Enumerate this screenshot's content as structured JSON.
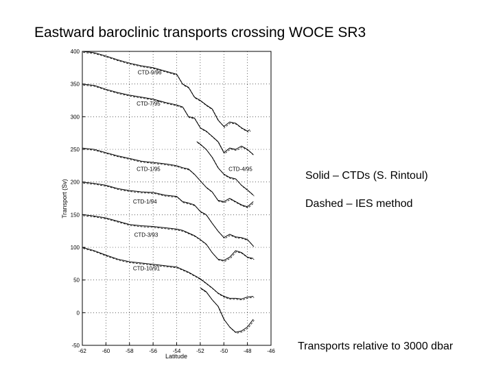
{
  "slide": {
    "title": "Eastward baroclinic transports crossing WOCE SR3",
    "notes": {
      "solid": "Solid – CTDs (S. Rintoul)",
      "dashed": "Dashed – IES method",
      "relative": "Transports relative to 3000 dbar"
    }
  },
  "chart_data": {
    "type": "line",
    "title": "",
    "xlabel": "Latitude",
    "ylabel": "Transport (Sv)",
    "xlim": [
      -62,
      -46
    ],
    "ylim": [
      -50,
      400
    ],
    "xticks": [
      "-62",
      "-60",
      "-58",
      "-56",
      "-54",
      "-52",
      "-50",
      "-48",
      "-46"
    ],
    "yticks": [
      "400",
      "350",
      "300",
      "250",
      "200",
      "150",
      "100",
      "50",
      "0",
      "-50"
    ],
    "grid": true,
    "series": [
      {
        "name": "CTD-9/96",
        "x": [
          -62,
          -61,
          -60,
          -59,
          -58,
          -57,
          -56,
          -55,
          -54,
          -53.5,
          -53,
          -52.5,
          -52,
          -51.5,
          -51,
          -50.5,
          -50,
          -49.5,
          -49,
          -48.5,
          -48,
          -47.8
        ],
        "y": [
          400,
          398,
          393,
          387,
          382,
          378,
          375,
          370,
          365,
          350,
          345,
          330,
          325,
          318,
          312,
          295,
          285,
          292,
          290,
          283,
          278,
          280
        ]
      },
      {
        "name": "CTD-7/95",
        "x": [
          -62,
          -61,
          -60,
          -59,
          -58,
          -57,
          -56,
          -55,
          -54,
          -53.5,
          -53,
          -52.5,
          -52,
          -51.5,
          -51,
          -50.5,
          -50,
          -49.5,
          -49,
          -48.5,
          -48,
          -47.5
        ],
        "y": [
          350,
          348,
          342,
          337,
          333,
          330,
          327,
          322,
          318,
          315,
          300,
          298,
          283,
          278,
          270,
          262,
          245,
          252,
          250,
          255,
          250,
          242
        ]
      },
      {
        "name": "CTD-4/95",
        "x": [
          -52.3,
          -52,
          -51.5,
          -51,
          -50.5,
          -50,
          -49.5,
          -49,
          -48.5,
          -48,
          -47.5
        ],
        "y": [
          262,
          258,
          250,
          238,
          222,
          212,
          207,
          205,
          195,
          188,
          180
        ]
      },
      {
        "name": "CTD-1/95",
        "x": [
          -62,
          -61,
          -60,
          -59,
          -58,
          -57,
          -56,
          -55,
          -54,
          -53.5,
          -53,
          -52.5,
          -52,
          -51.5,
          -51,
          -50.5,
          -50,
          -49.5,
          -49,
          -48.5,
          -48,
          -47.5
        ],
        "y": [
          252,
          250,
          245,
          240,
          236,
          232,
          230,
          228,
          225,
          222,
          220,
          212,
          202,
          192,
          185,
          172,
          170,
          175,
          170,
          165,
          162,
          170
        ]
      },
      {
        "name": "CTD-1/94",
        "x": [
          -62,
          -61,
          -60,
          -59,
          -58,
          -57,
          -56,
          -55,
          -54,
          -53.5,
          -53,
          -52.5,
          -52,
          -51.5,
          -51,
          -50.5,
          -50,
          -49.5,
          -49,
          -48.5,
          -48,
          -47.5
        ],
        "y": [
          200,
          198,
          195,
          190,
          187,
          185,
          184,
          180,
          178,
          170,
          168,
          165,
          155,
          150,
          137,
          125,
          115,
          120,
          116,
          115,
          112,
          102
        ]
      },
      {
        "name": "CTD-3/93",
        "x": [
          -62,
          -61,
          -60,
          -59,
          -58,
          -57,
          -56,
          -55,
          -54,
          -53.5,
          -53,
          -52.5,
          -52,
          -51.5,
          -51,
          -50.5,
          -50,
          -49.5,
          -49,
          -48.5,
          -48,
          -47.5
        ],
        "y": [
          150,
          148,
          145,
          140,
          135,
          133,
          132,
          130,
          128,
          126,
          122,
          118,
          112,
          105,
          92,
          82,
          80,
          85,
          95,
          92,
          85,
          83
        ]
      },
      {
        "name": "CTD-10/91",
        "x": [
          -62,
          -61,
          -60,
          -59,
          -58,
          -57,
          -56,
          -55,
          -54,
          -53.5,
          -53,
          -52.5,
          -52,
          -51.5,
          -51,
          -50.5,
          -50,
          -49.5,
          -49,
          -48.5,
          -48,
          -47.5
        ],
        "y": [
          100,
          95,
          88,
          82,
          78,
          76,
          74,
          72,
          70,
          66,
          62,
          57,
          52,
          45,
          38,
          30,
          25,
          22,
          22,
          21,
          24,
          25
        ]
      },
      {
        "name": "",
        "x": [
          -52,
          -51.5,
          -51,
          -50.5,
          -50,
          -49.5,
          -49,
          -48.5,
          -48,
          -47.5
        ],
        "y": [
          38,
          32,
          20,
          10,
          -10,
          -22,
          -30,
          -28,
          -22,
          -10
        ]
      }
    ]
  }
}
